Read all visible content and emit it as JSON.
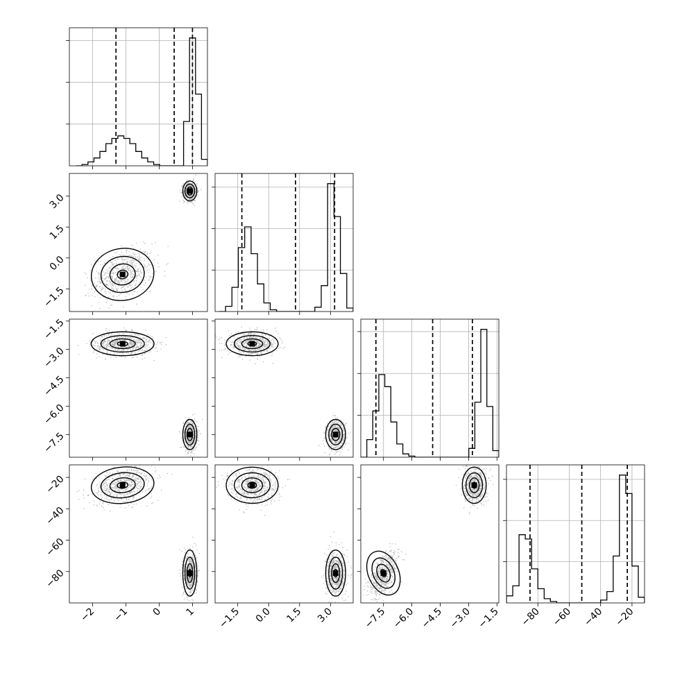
{
  "chart_data": {
    "type": "corner",
    "grid": true,
    "params": [
      {
        "range": [
          -2.7,
          1.45
        ],
        "ticks": [
          -2,
          -1,
          0,
          1
        ],
        "labels": [
          "−2",
          "−1",
          "0",
          "1"
        ]
      },
      {
        "range": [
          -2.6,
          4.1
        ],
        "ticks": [
          -1.5,
          0.0,
          1.5,
          3.0
        ],
        "labels": [
          "−1.5",
          "0.0",
          "1.5",
          "3.0"
        ]
      },
      {
        "range": [
          -8.7,
          -1.4
        ],
        "ticks": [
          -7.5,
          -6.0,
          -4.5,
          -3.0,
          -1.5
        ],
        "labels": [
          "−7.5",
          "−6.0",
          "−4.5",
          "−3.0",
          "−1.5"
        ]
      },
      {
        "range": [
          -100,
          -12
        ],
        "ticks": [
          -80,
          -60,
          -40,
          -20
        ],
        "labels": [
          "−80",
          "−60",
          "−40",
          "−20"
        ]
      }
    ],
    "histograms": [
      {
        "edges_min": -2.5,
        "edges_max": 1.45,
        "counts": [
          0,
          1,
          3,
          6,
          11,
          17,
          21,
          23,
          21,
          17,
          11,
          6,
          3,
          1,
          0,
          0,
          0,
          0,
          34,
          98,
          55,
          5
        ],
        "quantiles": [
          -1.3,
          0.45,
          1.0
        ]
      },
      {
        "edges_min": -2.4,
        "edges_max": 4.1,
        "counts": [
          0,
          6,
          28,
          74,
          98,
          67,
          32,
          10,
          2,
          0,
          0,
          0,
          0,
          0,
          0,
          5,
          30,
          148,
          110,
          44,
          4
        ],
        "quantiles": [
          -1.3,
          1.3,
          3.2
        ]
      },
      {
        "edges_min": -8.7,
        "edges_max": -1.4,
        "counts": [
          0,
          16,
          42,
          75,
          64,
          32,
          12,
          3,
          1,
          0,
          0,
          0,
          0,
          0,
          0,
          0,
          0,
          0,
          8,
          50,
          116,
          46,
          6
        ],
        "quantiles": [
          -7.9,
          -4.9,
          -2.8
        ]
      },
      {
        "edges_min": -100,
        "edges_max": -12,
        "counts": [
          5,
          12,
          48,
          45,
          24,
          10,
          3,
          1,
          0,
          0,
          0,
          0,
          0,
          0,
          0,
          2,
          8,
          33,
          90,
          77,
          26,
          4
        ],
        "quantiles": [
          -85,
          -52,
          -23
        ]
      }
    ],
    "modes": [
      {
        "center": [
          -1.1,
          -0.8,
          -2.7,
          -25
        ],
        "sd": [
          0.45,
          0.6,
          0.3,
          5.5
        ]
      },
      {
        "center": [
          0.92,
          3.25,
          -7.5,
          -81
        ],
        "sd": [
          0.1,
          0.23,
          0.38,
          7.0
        ]
      }
    ]
  }
}
